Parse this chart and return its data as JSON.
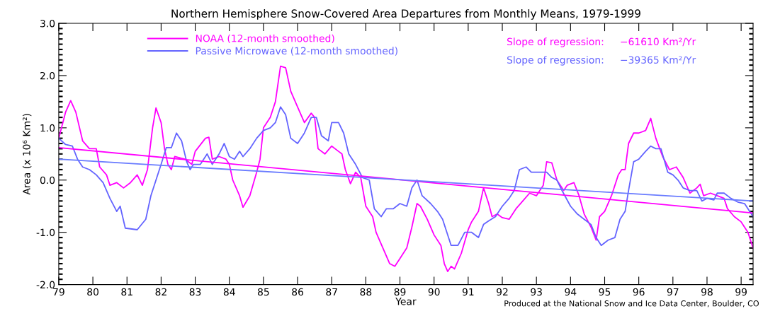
{
  "chart_data": {
    "type": "line",
    "title": "Northern Hemisphere Snow-Covered Area Departures from Monthly Means, 1979-1999",
    "xlabel": "Year",
    "ylabel": "Area (x 10⁶ Km²)",
    "xlim": [
      79,
      99.35
    ],
    "xticks": [
      79,
      80,
      81,
      82,
      83,
      84,
      85,
      86,
      87,
      88,
      89,
      90,
      91,
      92,
      93,
      94,
      95,
      96,
      97,
      98,
      99
    ],
    "ylim": [
      -2.0,
      3.0
    ],
    "yticks": [
      {
        "value": -2,
        "label": "-2.0"
      },
      {
        "value": -1,
        "label": "-1.0"
      },
      {
        "value": 0,
        "label": "0.0"
      },
      {
        "value": 1,
        "label": "1.0"
      },
      {
        "value": 2,
        "label": "2.0"
      },
      {
        "value": 3,
        "label": "3.0"
      }
    ],
    "grid": false,
    "legend": "top left",
    "marker": "none",
    "line_style": "solid",
    "series": [
      {
        "name": "NOAA (12-month smoothed)",
        "color": "#ff00ff",
        "x": [
          79.0,
          79.2,
          79.35,
          79.5,
          79.7,
          79.9,
          80.1,
          80.2,
          80.4,
          80.5,
          80.7,
          80.9,
          81.1,
          81.3,
          81.45,
          81.6,
          81.75,
          81.85,
          82.0,
          82.1,
          82.2,
          82.3,
          82.4,
          82.7,
          82.9,
          83.0,
          83.3,
          83.4,
          83.5,
          83.7,
          83.9,
          84.0,
          84.1,
          84.3,
          84.4,
          84.6,
          84.8,
          84.9,
          85.0,
          85.2,
          85.35,
          85.5,
          85.65,
          85.8,
          86.0,
          86.2,
          86.4,
          86.5,
          86.6,
          86.8,
          87.0,
          87.2,
          87.3,
          87.4,
          87.55,
          87.7,
          87.85,
          88.0,
          88.2,
          88.3,
          88.5,
          88.7,
          88.85,
          89.0,
          89.2,
          89.35,
          89.5,
          89.6,
          89.8,
          90.0,
          90.2,
          90.3,
          90.4,
          90.5,
          90.6,
          90.8,
          91.0,
          91.1,
          91.3,
          91.45,
          91.6,
          91.7,
          91.85,
          92.0,
          92.2,
          92.4,
          92.6,
          92.8,
          93.0,
          93.2,
          93.3,
          93.45,
          93.6,
          93.8,
          93.9,
          94.1,
          94.25,
          94.4,
          94.6,
          94.75,
          94.85,
          95.0,
          95.2,
          95.4,
          95.5,
          95.6,
          95.7,
          95.85,
          96.0,
          96.2,
          96.35,
          96.5,
          96.7,
          96.9,
          97.1,
          97.3,
          97.5,
          97.7,
          97.8,
          97.9,
          98.1,
          98.3,
          98.5,
          98.6,
          98.8,
          99.0,
          99.2,
          99.35
        ],
        "values": [
          0.8,
          1.3,
          1.52,
          1.3,
          0.75,
          0.6,
          0.6,
          0.25,
          0.1,
          -0.1,
          -0.05,
          -0.15,
          -0.05,
          0.1,
          -0.1,
          0.2,
          1.0,
          1.38,
          1.1,
          0.6,
          0.3,
          0.2,
          0.45,
          0.4,
          0.3,
          0.55,
          0.8,
          0.82,
          0.4,
          0.45,
          0.4,
          0.3,
          0.0,
          -0.3,
          -0.52,
          -0.3,
          0.15,
          0.4,
          1.0,
          1.2,
          1.5,
          2.18,
          2.15,
          1.7,
          1.4,
          1.1,
          1.28,
          1.2,
          0.6,
          0.5,
          0.65,
          0.55,
          0.5,
          0.2,
          -0.07,
          0.15,
          0.05,
          -0.5,
          -0.7,
          -1.0,
          -1.3,
          -1.6,
          -1.65,
          -1.5,
          -1.3,
          -0.9,
          -0.45,
          -0.5,
          -0.75,
          -1.05,
          -1.25,
          -1.6,
          -1.75,
          -1.65,
          -1.7,
          -1.4,
          -0.95,
          -0.8,
          -0.6,
          -0.15,
          -0.45,
          -0.7,
          -0.65,
          -0.72,
          -0.75,
          -0.55,
          -0.4,
          -0.25,
          -0.3,
          -0.1,
          0.35,
          0.33,
          0.0,
          -0.2,
          -0.1,
          -0.05,
          -0.3,
          -0.65,
          -0.9,
          -1.15,
          -0.7,
          -0.6,
          -0.3,
          0.1,
          0.2,
          0.2,
          0.7,
          0.9,
          0.9,
          0.95,
          1.18,
          0.8,
          0.45,
          0.2,
          0.25,
          0.05,
          -0.25,
          -0.15,
          -0.08,
          -0.3,
          -0.25,
          -0.3,
          -0.35,
          -0.55,
          -0.7,
          -0.8,
          -1.0,
          -1.3
        ]
      },
      {
        "name": "Passive Microwave (12-month smoothed)",
        "color": "#6464ff",
        "x": [
          79.0,
          79.2,
          79.4,
          79.55,
          79.7,
          79.9,
          80.1,
          80.3,
          80.5,
          80.7,
          80.8,
          80.95,
          81.3,
          81.55,
          81.7,
          81.85,
          82.0,
          82.15,
          82.3,
          82.45,
          82.6,
          82.75,
          82.85,
          82.95,
          83.15,
          83.35,
          83.5,
          83.7,
          83.85,
          84.0,
          84.15,
          84.3,
          84.4,
          84.6,
          84.8,
          85.0,
          85.2,
          85.35,
          85.5,
          85.65,
          85.8,
          86.0,
          86.2,
          86.4,
          86.55,
          86.7,
          86.9,
          87.0,
          87.2,
          87.35,
          87.5,
          87.7,
          87.9,
          88.1,
          88.25,
          88.45,
          88.6,
          88.8,
          89.0,
          89.2,
          89.35,
          89.5,
          89.65,
          89.9,
          90.1,
          90.25,
          90.5,
          90.7,
          90.9,
          91.1,
          91.3,
          91.45,
          91.6,
          91.8,
          92.0,
          92.2,
          92.35,
          92.5,
          92.7,
          92.85,
          93.1,
          93.3,
          93.45,
          93.6,
          93.75,
          94.0,
          94.2,
          94.4,
          94.6,
          94.75,
          94.9,
          95.1,
          95.3,
          95.45,
          95.6,
          95.7,
          95.85,
          96.0,
          96.2,
          96.35,
          96.5,
          96.65,
          96.85,
          97.0,
          97.15,
          97.3,
          97.5,
          97.7,
          97.85,
          98.0,
          98.2,
          98.3,
          98.5,
          98.7,
          98.9,
          99.1,
          99.35
        ],
        "values": [
          0.8,
          0.68,
          0.65,
          0.4,
          0.25,
          0.2,
          0.1,
          -0.05,
          -0.35,
          -0.6,
          -0.5,
          -0.92,
          -0.95,
          -0.75,
          -0.3,
          0.0,
          0.3,
          0.62,
          0.62,
          0.9,
          0.75,
          0.35,
          0.2,
          0.3,
          0.3,
          0.5,
          0.3,
          0.5,
          0.7,
          0.45,
          0.4,
          0.55,
          0.45,
          0.6,
          0.8,
          0.95,
          1.0,
          1.1,
          1.4,
          1.25,
          0.8,
          0.7,
          0.9,
          1.2,
          1.2,
          0.85,
          0.75,
          1.1,
          1.1,
          0.9,
          0.5,
          0.3,
          0.05,
          0.0,
          -0.55,
          -0.7,
          -0.55,
          -0.55,
          -0.45,
          -0.5,
          -0.15,
          0.0,
          -0.3,
          -0.45,
          -0.6,
          -0.75,
          -1.25,
          -1.25,
          -1.0,
          -1.0,
          -1.1,
          -0.85,
          -0.78,
          -0.7,
          -0.5,
          -0.35,
          -0.2,
          0.2,
          0.25,
          0.15,
          0.15,
          0.15,
          0.05,
          0.0,
          -0.2,
          -0.5,
          -0.65,
          -0.75,
          -0.85,
          -1.1,
          -1.25,
          -1.15,
          -1.1,
          -0.75,
          -0.6,
          -0.2,
          0.35,
          0.4,
          0.55,
          0.65,
          0.6,
          0.6,
          0.15,
          0.1,
          0.0,
          -0.15,
          -0.2,
          -0.2,
          -0.4,
          -0.35,
          -0.38,
          -0.25,
          -0.25,
          -0.35,
          -0.42,
          -0.45,
          -0.7
        ]
      },
      {
        "color": "#ff00ff",
        "x": [
          79,
          99.35
        ],
        "values": [
          0.62,
          -0.63
        ]
      },
      {
        "color": "#6a7cff",
        "x": [
          79,
          99.35
        ],
        "values": [
          0.4,
          -0.4
        ]
      }
    ],
    "annotations": [
      "Slope of regression:     −61610 Km²/Yr",
      "Slope of regression:     −39365 Km²/Yr",
      "Produced at the National Snow and Ice Data Center, Boulder, CO"
    ],
    "tick_labels": "xy"
  }
}
